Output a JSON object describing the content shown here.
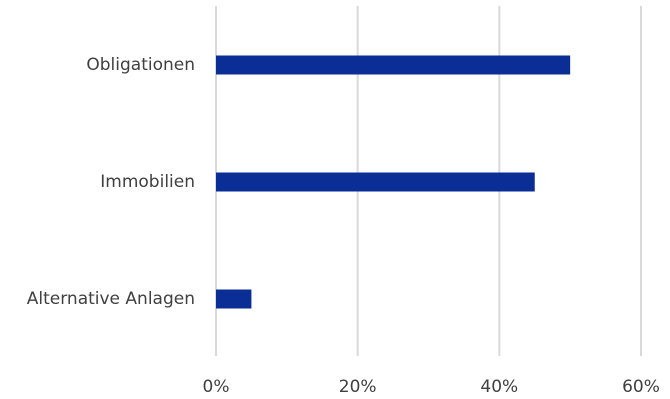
{
  "chart_data": {
    "type": "bar",
    "orientation": "horizontal",
    "categories": [
      "Obligationen",
      "Immobilien",
      "Alternative Anlagen"
    ],
    "values": [
      50,
      45,
      5
    ],
    "xlim": [
      0,
      60
    ],
    "x_ticks": [
      0,
      20,
      40,
      60
    ],
    "x_tick_labels": [
      "0%",
      "20%",
      "40%",
      "60%"
    ],
    "grid": true,
    "legend": "none",
    "colors": {
      "bar": "#0a2d96",
      "grid": "#d9d9d9",
      "text": "#404040"
    }
  }
}
